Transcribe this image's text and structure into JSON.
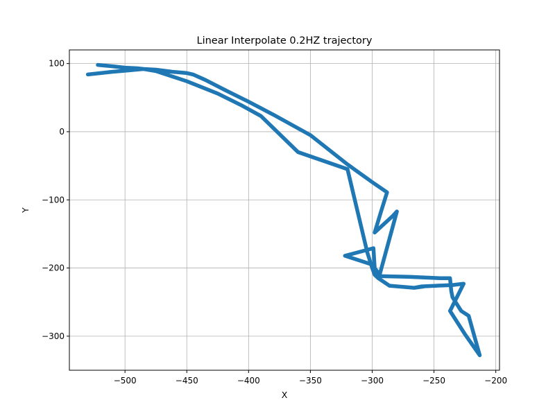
{
  "chart_data": {
    "type": "line",
    "title": "Linear Interpolate 0.2HZ trajectory",
    "xlabel": "X",
    "ylabel": "Y",
    "xlim": [
      -545,
      -197
    ],
    "ylim": [
      -350,
      120
    ],
    "xticks": [
      -500,
      -450,
      -400,
      -350,
      -300,
      -250,
      -200
    ],
    "yticks": [
      100,
      0,
      -100,
      -200,
      -300
    ],
    "xtick_labels": [
      "−500",
      "−450",
      "−400",
      "−350",
      "−300",
      "−250",
      "−200"
    ],
    "ytick_labels": [
      "100",
      "0",
      "−100",
      "−200",
      "−300"
    ],
    "grid": true,
    "legend": "none",
    "color": "#1f77b4",
    "series": [
      {
        "x": [
          -522,
          -510,
          -500,
          -490,
          -485,
          -475,
          -462,
          -450,
          -445,
          -435,
          -420,
          -400,
          -380,
          -350,
          -320,
          -300,
          -288,
          -293,
          -298,
          -292,
          -283,
          -280,
          -280,
          -294,
          -298,
          -299,
          -322,
          -300,
          -295,
          -270,
          -245,
          -237,
          -236,
          -235,
          -228,
          -222,
          -213,
          -225,
          -237,
          -226,
          -235,
          -248,
          -260,
          -266,
          -258,
          -266,
          -286,
          -295,
          -298,
          -300,
          -304,
          -320,
          -360,
          -390,
          -405,
          -425,
          -450,
          -475,
          -485,
          -497,
          -510,
          -530
        ],
        "y": [
          98,
          96,
          94,
          93,
          92,
          91,
          88,
          86,
          84,
          76,
          62,
          44,
          25,
          -5,
          -48,
          -74,
          -89,
          -118,
          -148,
          -138,
          -123,
          -117,
          -117,
          -210,
          -200,
          -171,
          -182,
          -195,
          -212,
          -213,
          -215,
          -215,
          -234,
          -243,
          -263,
          -270,
          -328,
          -297,
          -263,
          -223,
          -225,
          -226,
          -227,
          -229,
          -227,
          -229,
          -226,
          -215,
          -210,
          -200,
          -177,
          -55,
          -30,
          23,
          38,
          56,
          74,
          89,
          92,
          90,
          88,
          84
        ]
      }
    ]
  }
}
